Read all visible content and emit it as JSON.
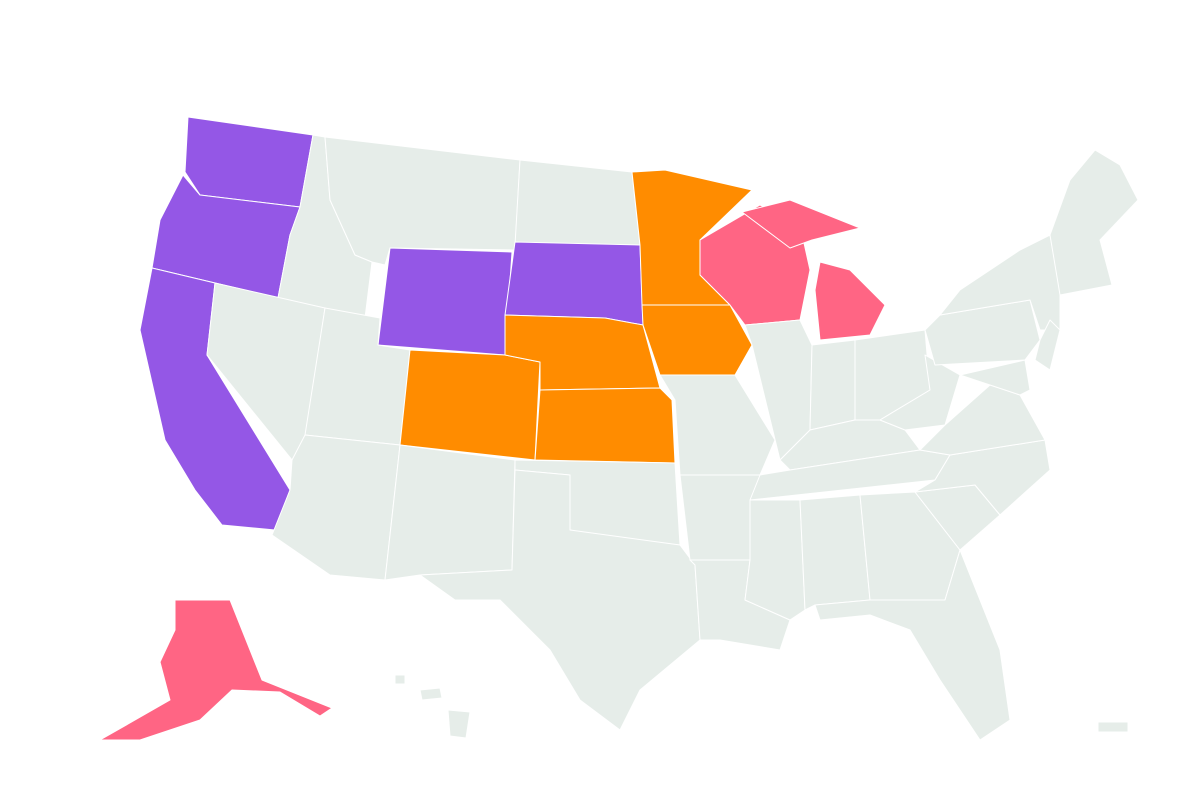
{
  "map": {
    "base_color": "#e6ede9",
    "border_color": "#ffffff",
    "groups": [
      {
        "color": "#9457e6",
        "states": [
          "WA",
          "OR",
          "CA",
          "WY",
          "SD"
        ]
      },
      {
        "color": "#ff8c00",
        "states": [
          "MN",
          "IA",
          "NE",
          "KS",
          "CO"
        ]
      },
      {
        "color": "#ff6584",
        "states": [
          "WI",
          "MI",
          "AK"
        ]
      }
    ]
  }
}
